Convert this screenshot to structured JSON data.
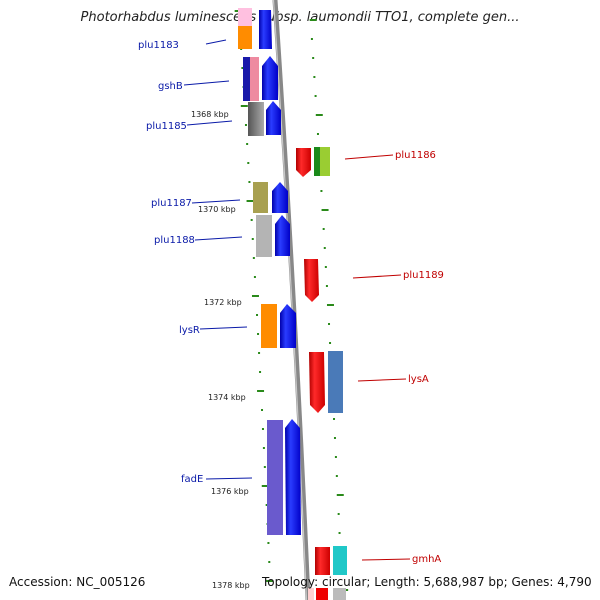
{
  "title": "Photorhabdus luminescens subsp. laumondii TTO1, complete gen...",
  "footer": {
    "accession": "Accession: NC_005126",
    "topology": "Topology: circular; Length: 5,688,987 bp; Genes: 4,790"
  },
  "scale_labels": [
    "1368 kbp",
    "1370 kbp",
    "1372 kbp",
    "1374 kbp",
    "1376 kbp",
    "1378 kbp"
  ],
  "genes_left": [
    "plu1183",
    "gshB",
    "plu1185",
    "plu1187",
    "plu1188",
    "lysR",
    "fadE"
  ],
  "genes_right": [
    "plu1186",
    "plu1189",
    "lysA",
    "gmhA"
  ],
  "colors": {
    "backbone": "#888888",
    "forward_cds": "#0000ee",
    "reverse_cds": "#ee0000",
    "left_label": "#0a1aa8",
    "right_label": "#c00000",
    "tick": "#2a8a1a"
  }
}
